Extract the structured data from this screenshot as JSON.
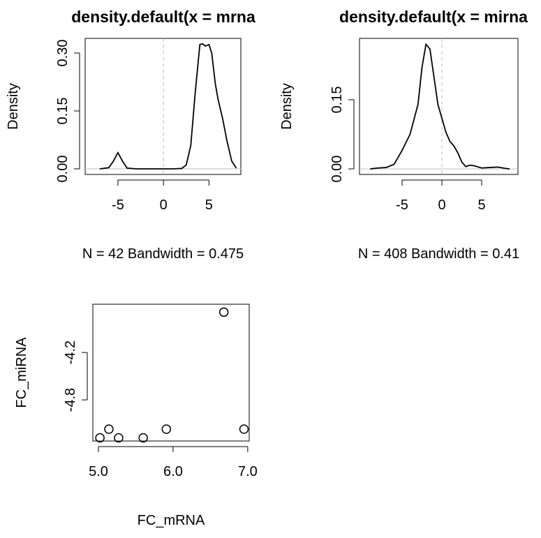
{
  "chart_data": [
    {
      "type": "line",
      "title": "density.default(x = mrna",
      "subtitle": "N = 42   Bandwidth = 0.475",
      "y_label": "Density",
      "color": "#000000",
      "x": [
        -7,
        -6,
        -5.5,
        -5,
        -4.5,
        -4,
        -3,
        1,
        2,
        2.5,
        3,
        3.5,
        4,
        4.3,
        4.6,
        5,
        5.3,
        5.7,
        6,
        6.5,
        7,
        7.5,
        8
      ],
      "values": [
        0,
        0.003,
        0.02,
        0.042,
        0.02,
        0.002,
        0,
        0,
        0.001,
        0.01,
        0.06,
        0.2,
        0.322,
        0.324,
        0.318,
        0.322,
        0.3,
        0.22,
        0.18,
        0.13,
        0.07,
        0.02,
        0.002
      ],
      "xlim": [
        -8.6,
        8.5
      ],
      "ylim": [
        -0.0145,
        0.338
      ],
      "xticks": [
        -5,
        0,
        5
      ],
      "yticks": [
        {
          "value": 0,
          "label": "0.00"
        },
        0.15,
        {
          "value": 0.3,
          "label": "0.30"
        }
      ],
      "vline": 0,
      "hline": 0
    },
    {
      "type": "line",
      "title": "density.default(x = mirna",
      "subtitle": "N = 408   Bandwidth = 0.41",
      "y_label": "Density",
      "color": "#000000",
      "x": [
        -9,
        -8,
        -7,
        -6,
        -5,
        -4,
        -3,
        -2.5,
        -2,
        -1.5,
        -1,
        -0.5,
        0,
        0.5,
        1,
        1.5,
        2,
        2.5,
        3,
        3.5,
        4,
        5,
        6,
        7,
        8,
        8.5
      ],
      "values": [
        0,
        0.002,
        0.003,
        0.01,
        0.04,
        0.075,
        0.14,
        0.22,
        0.27,
        0.26,
        0.2,
        0.14,
        0.11,
        0.08,
        0.06,
        0.05,
        0.035,
        0.015,
        0.005,
        0.008,
        0.007,
        0.002,
        0.003,
        0.004,
        0.001,
        0
      ],
      "xlim": [
        -10.35,
        9.56
      ],
      "ylim": [
        -0.012,
        0.283
      ],
      "xticks": [
        -5,
        0,
        5
      ],
      "yticks": [
        {
          "value": 0,
          "label": "0.00"
        },
        0.15
      ],
      "vline": 0,
      "hline": 0
    },
    {
      "type": "scatter",
      "x_label": "FC_mRNA",
      "y_label": "FC_miRNA",
      "color": "#000000",
      "x": [
        5.02,
        5.14,
        5.27,
        5.6,
        5.91,
        6.68,
        6.95
      ],
      "values": [
        -5.28,
        -5.17,
        -5.28,
        -5.28,
        -5.17,
        -3.69,
        -5.17
      ],
      "xlim": [
        4.925,
        7.02
      ],
      "ylim": [
        -5.32,
        -3.59
      ],
      "xticks": [
        {
          "value": 5,
          "label": "5.0"
        },
        {
          "value": 6,
          "label": "6.0"
        },
        {
          "value": 7,
          "label": "7.0"
        }
      ],
      "yticks": [
        -4.2,
        -4.8
      ]
    }
  ]
}
